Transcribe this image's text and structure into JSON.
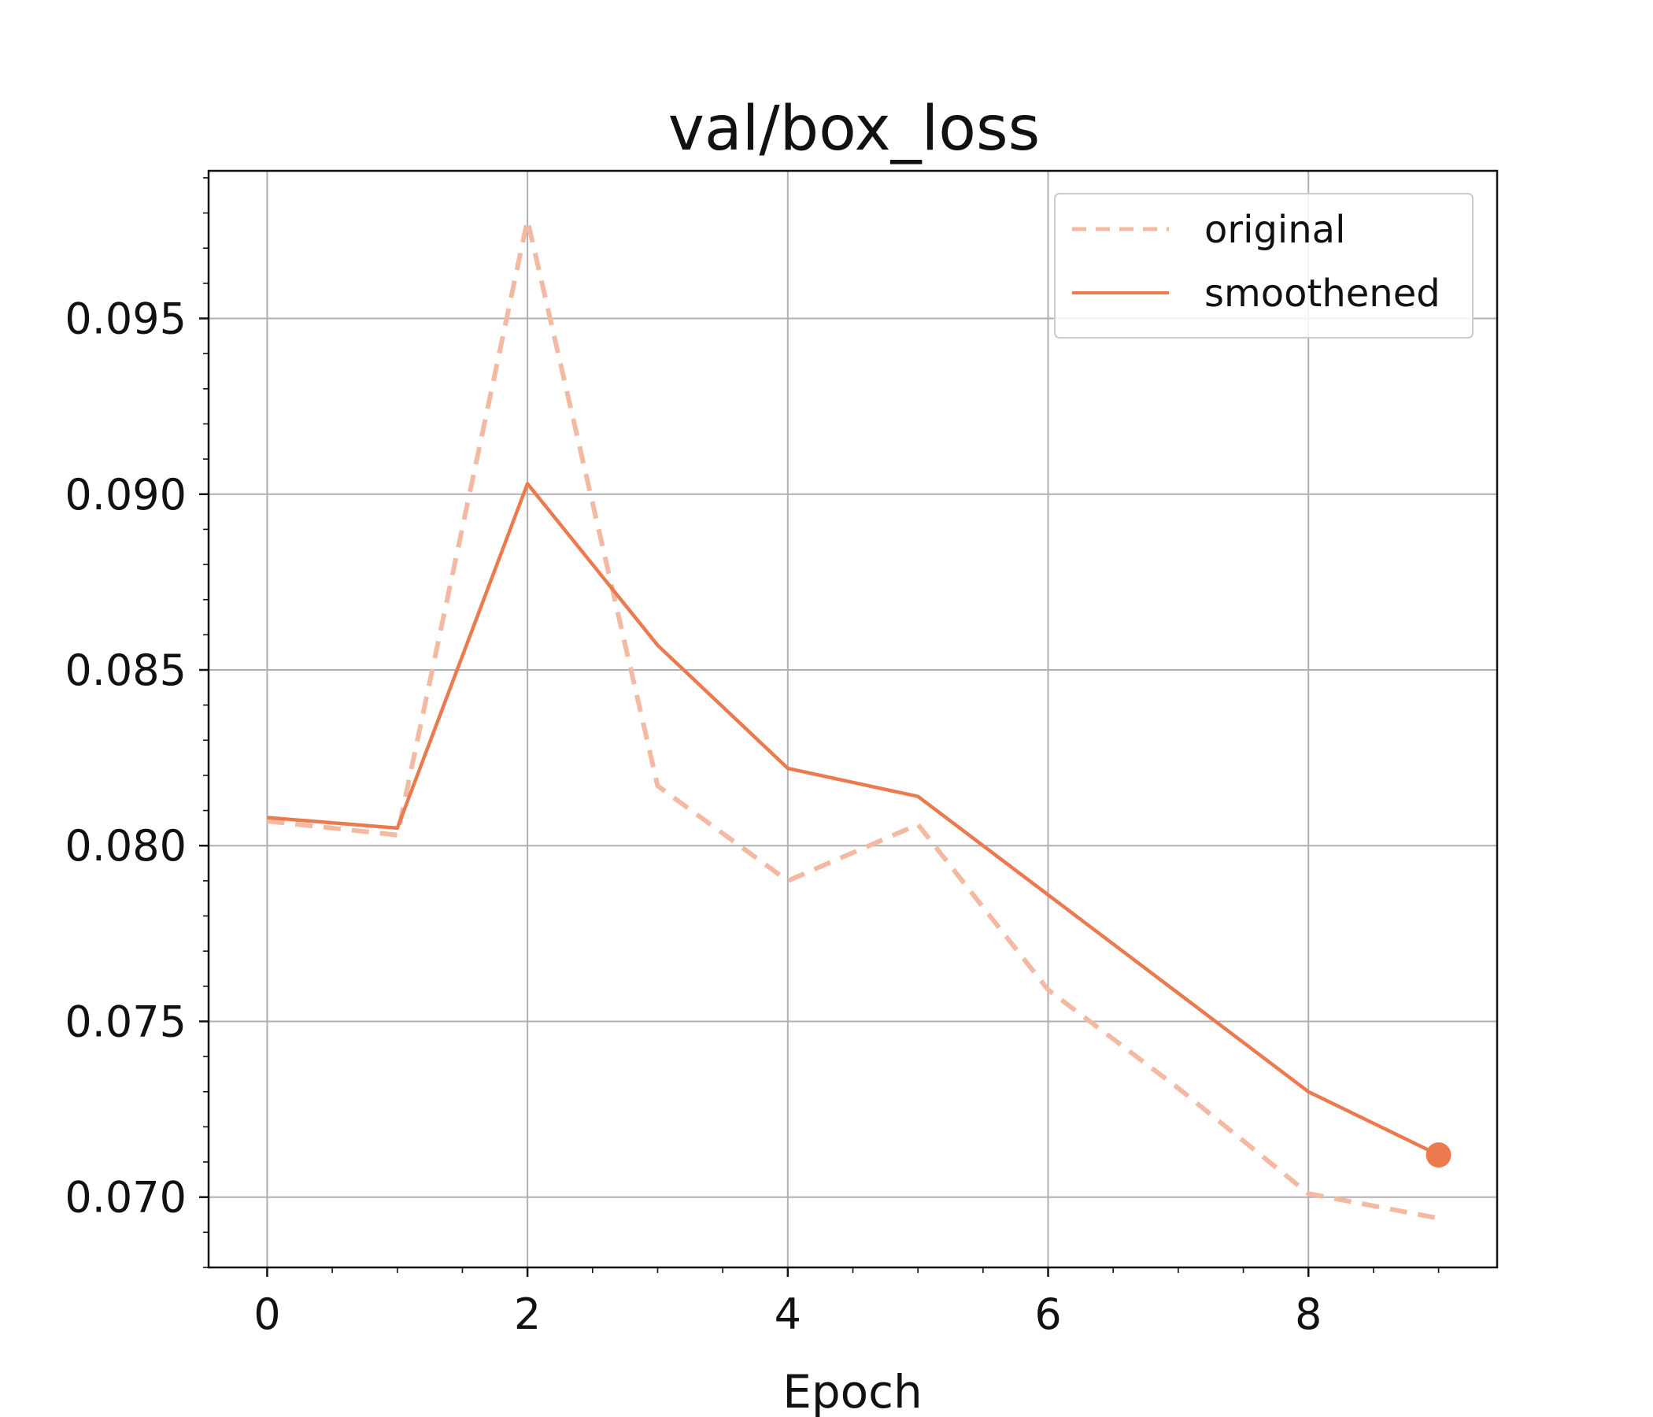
{
  "chart_data": {
    "type": "line",
    "title": "val/box_loss",
    "xlabel": "Epoch",
    "ylabel": "",
    "xlim": [
      -0.45,
      9.45
    ],
    "ylim": [
      0.068,
      0.0992
    ],
    "x_ticks": [
      0,
      2,
      4,
      6,
      8
    ],
    "x_tick_labels": [
      "0",
      "2",
      "4",
      "6",
      "8"
    ],
    "y_ticks": [
      0.07,
      0.075,
      0.08,
      0.085,
      0.09,
      0.095
    ],
    "y_tick_labels": [
      "0.070",
      "0.075",
      "0.080",
      "0.085",
      "0.090",
      "0.095"
    ],
    "grid": true,
    "legend_position": "top-right",
    "x": [
      0,
      1,
      2,
      3,
      4,
      5,
      6,
      7,
      8,
      9
    ],
    "series": [
      {
        "name": "original",
        "style": "dashed",
        "color": "#f4b9a2",
        "values": [
          0.0807,
          0.0803,
          0.0978,
          0.0817,
          0.079,
          0.0806,
          0.0759,
          0.0731,
          0.0701,
          0.0694
        ]
      },
      {
        "name": "smoothened",
        "style": "solid",
        "color": "#eb7a4f",
        "values": [
          0.0808,
          0.0805,
          0.0903,
          0.0857,
          0.0822,
          0.0814,
          0.0786,
          0.0758,
          0.073,
          0.0712
        ]
      }
    ],
    "end_marker": {
      "series": "smoothened",
      "x": 9,
      "y": 0.0712,
      "color": "#eb7a4f"
    }
  }
}
